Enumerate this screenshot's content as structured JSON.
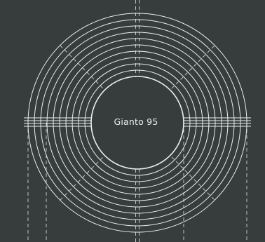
{
  "diagram": {
    "center_label": "Gianto 95",
    "ring_count": 10,
    "colors": {
      "background": "#373d3d",
      "line": "#e9eeee",
      "dashed_line": "#cdd3d3"
    }
  }
}
